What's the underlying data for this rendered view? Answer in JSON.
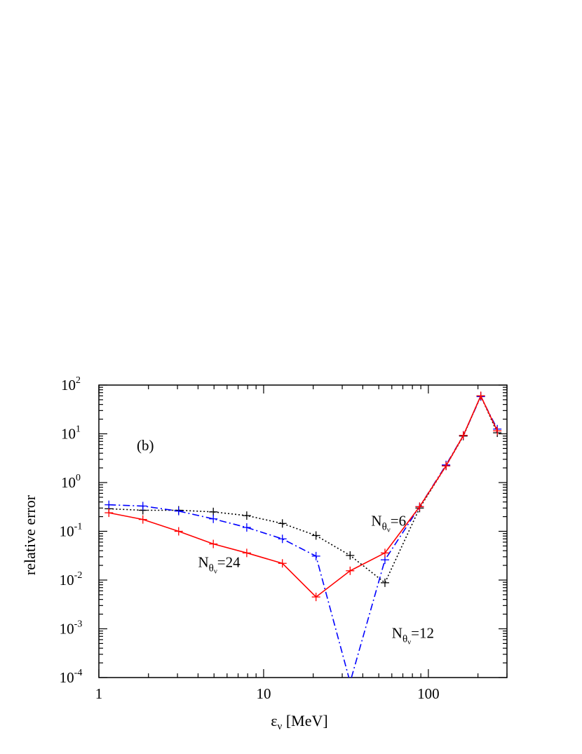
{
  "chart_data": {
    "type": "line",
    "xlabel": {
      "symbol": "ε",
      "sub": "ν",
      "rest": " [MeV]"
    },
    "ylabel": "relative error",
    "xscale": "log",
    "yscale": "log",
    "xlim": [
      1,
      300
    ],
    "ylim": [
      0.0001,
      100
    ],
    "x_ticks": [
      "1",
      "10",
      "100"
    ],
    "y_ticks": [
      {
        "base": "10",
        "exp": "-4"
      },
      {
        "base": "10",
        "exp": "-3"
      },
      {
        "base": "10",
        "exp": "-2"
      },
      {
        "base": "10",
        "exp": "-1"
      },
      {
        "base": "10",
        "exp": "0"
      },
      {
        "base": "10",
        "exp": "1"
      },
      {
        "base": "10",
        "exp": "2"
      }
    ],
    "panel_label": "(b)",
    "grid": false,
    "series": [
      {
        "color": "#000000",
        "dash": "2,3",
        "marker": "+",
        "x": [
          1.15,
          1.85,
          3.05,
          4.95,
          7.9,
          13.0,
          20.8,
          33.5,
          54.5,
          88.5,
          128,
          163,
          208,
          262
        ],
        "y": [
          0.29,
          0.27,
          0.27,
          0.25,
          0.21,
          0.145,
          0.082,
          0.032,
          0.0088,
          0.3,
          2.2,
          9.0,
          60,
          10.5
        ]
      },
      {
        "color": "#0000ff",
        "dash": "10,4,2,4",
        "marker": "+",
        "x": [
          1.15,
          1.85,
          3.05,
          4.95,
          7.9,
          13.0,
          20.8,
          33.5,
          54.5,
          88.5,
          128,
          163,
          208,
          262
        ],
        "y": [
          0.35,
          0.33,
          0.26,
          0.18,
          0.12,
          0.07,
          0.031,
          8e-05,
          0.026,
          0.32,
          2.3,
          9.3,
          58,
          12.5
        ]
      },
      {
        "color": "#ff0000",
        "dash": "",
        "marker": "+",
        "x": [
          1.15,
          1.85,
          3.05,
          4.95,
          7.9,
          13.0,
          20.8,
          33.5,
          54.5,
          88.5,
          128,
          163,
          208,
          262
        ],
        "y": [
          0.24,
          0.175,
          0.1,
          0.055,
          0.036,
          0.022,
          0.0045,
          0.0155,
          0.036,
          0.32,
          2.2,
          9.3,
          60,
          11.5
        ]
      }
    ],
    "annotations": [
      {
        "base": "N",
        "sub": "θ",
        "subsub": "ν",
        "value": "=6",
        "x": 45,
        "y": 0.13
      },
      {
        "base": "N",
        "sub": "θ",
        "subsub": "ν",
        "value": "=24",
        "x": 4.0,
        "y": 0.0185
      },
      {
        "base": "N",
        "sub": "θ",
        "subsub": "ν",
        "value": "=12",
        "x": 60,
        "y": 0.00065
      }
    ]
  }
}
